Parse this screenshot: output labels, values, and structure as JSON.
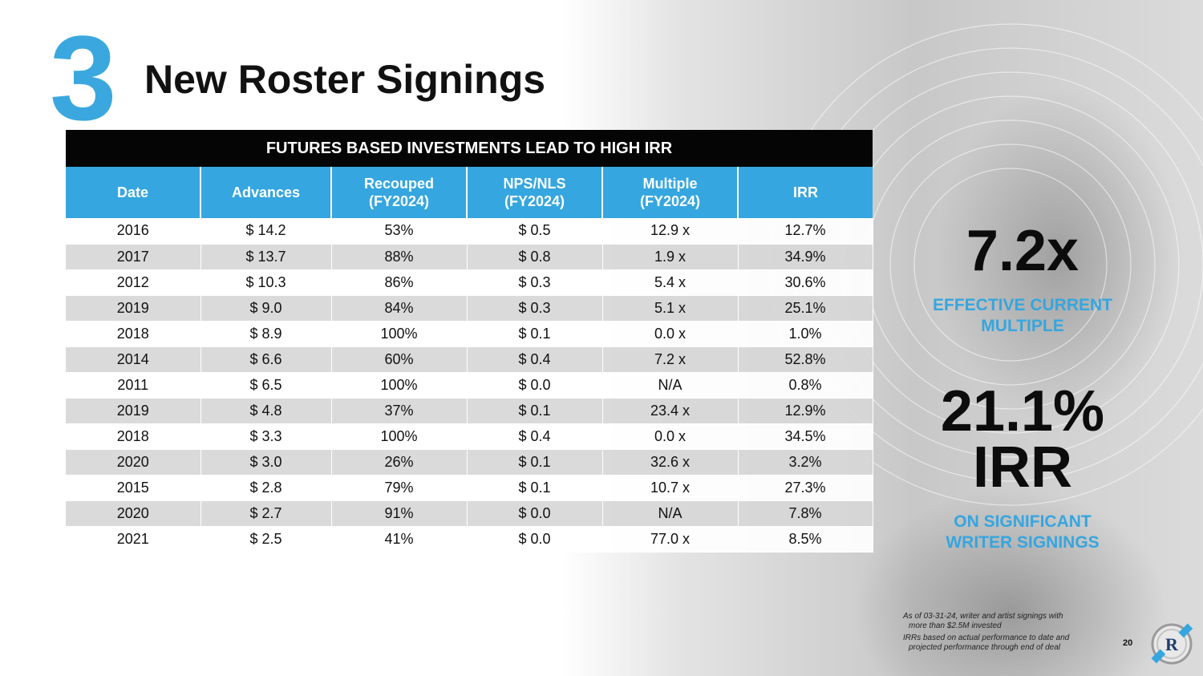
{
  "slide": {
    "number": "3",
    "title": "New Roster Signings",
    "page_number": "20"
  },
  "table": {
    "banner": "FUTURES BASED INVESTMENTS LEAD TO HIGH IRR",
    "headers": [
      [
        "Date"
      ],
      [
        "Advances"
      ],
      [
        "Recouped",
        "(FY2024)"
      ],
      [
        "NPS/NLS",
        "(FY2024)"
      ],
      [
        "Multiple",
        "(FY2024)"
      ],
      [
        "IRR"
      ]
    ],
    "rows": [
      [
        "2016",
        "$ 14.2",
        "53%",
        "$ 0.5",
        "12.9 x",
        "12.7%"
      ],
      [
        "2017",
        "$ 13.7",
        "88%",
        "$ 0.8",
        "1.9 x",
        "34.9%"
      ],
      [
        "2012",
        "$ 10.3",
        "86%",
        "$ 0.3",
        "5.4 x",
        "30.6%"
      ],
      [
        "2019",
        "$ 9.0",
        "84%",
        "$ 0.3",
        "5.1 x",
        "25.1%"
      ],
      [
        "2018",
        "$ 8.9",
        "100%",
        "$ 0.1",
        "0.0 x",
        "1.0%"
      ],
      [
        "2014",
        "$ 6.6",
        "60%",
        "$ 0.4",
        "7.2 x",
        "52.8%"
      ],
      [
        "2011",
        "$ 6.5",
        "100%",
        "$ 0.0",
        "N/A",
        "0.8%"
      ],
      [
        "2019",
        "$ 4.8",
        "37%",
        "$ 0.1",
        "23.4 x",
        "12.9%"
      ],
      [
        "2018",
        "$ 3.3",
        "100%",
        "$ 0.4",
        "0.0 x",
        "34.5%"
      ],
      [
        "2020",
        "$ 3.0",
        "26%",
        "$ 0.1",
        "32.6 x",
        "3.2%"
      ],
      [
        "2015",
        "$ 2.8",
        "79%",
        "$ 0.1",
        "10.7 x",
        "27.3%"
      ],
      [
        "2020",
        "$ 2.7",
        "91%",
        "$ 0.0",
        "N/A",
        "7.8%"
      ],
      [
        "2021",
        "$ 2.5",
        "41%",
        "$ 0.0",
        "77.0 x",
        "8.5%"
      ]
    ]
  },
  "stats": {
    "multiple_value": "7.2x",
    "multiple_label_1": "EFFECTIVE CURRENT",
    "multiple_label_2": "MULTIPLE",
    "irr_value_1": "21.1%",
    "irr_value_2": "IRR",
    "irr_label_1": "ON SIGNIFICANT",
    "irr_label_2": "WRITER SIGNINGS"
  },
  "footnotes": {
    "note1_line1": "As of 03-31-24, writer and artist signings with",
    "note1_line2": "more than $2.5M invested",
    "note2_line1": "IRRs based on actual performance to date and",
    "note2_line2": "projected performance through end of deal"
  },
  "logo": {
    "letter": "R",
    "icon": "company-logo-icon"
  },
  "colors": {
    "accent": "#35a6df",
    "banner": "#050505",
    "text": "#111111"
  }
}
